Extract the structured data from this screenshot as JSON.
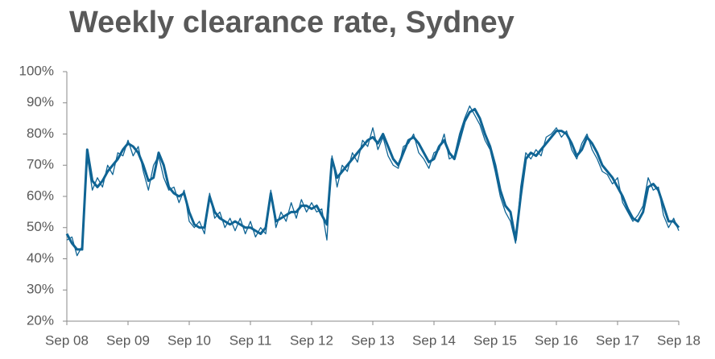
{
  "chart_data": {
    "type": "line",
    "title": "Weekly clearance rate, Sydney",
    "categories": [
      "Sep 08",
      null,
      null,
      null,
      null,
      null,
      null,
      null,
      null,
      null,
      null,
      null,
      "Sep 09",
      null,
      null,
      null,
      null,
      null,
      null,
      null,
      null,
      null,
      null,
      null,
      "Sep 10",
      null,
      null,
      null,
      null,
      null,
      null,
      null,
      null,
      null,
      null,
      null,
      "Sep 11",
      null,
      null,
      null,
      null,
      null,
      null,
      null,
      null,
      null,
      null,
      null,
      "Sep 12",
      null,
      null,
      null,
      null,
      null,
      null,
      null,
      null,
      null,
      null,
      null,
      "Sep 13",
      null,
      null,
      null,
      null,
      null,
      null,
      null,
      null,
      null,
      null,
      null,
      "Sep 14",
      null,
      null,
      null,
      null,
      null,
      null,
      null,
      null,
      null,
      null,
      null,
      "Sep 15",
      null,
      null,
      null,
      null,
      null,
      null,
      null,
      null,
      null,
      null,
      null,
      "Sep 16",
      null,
      null,
      null,
      null,
      null,
      null,
      null,
      null,
      null,
      null,
      null,
      "Sep 17",
      null,
      null,
      null,
      null,
      null,
      null,
      null,
      null,
      null,
      null,
      null,
      "Sep 18"
    ],
    "series": [
      {
        "color": "#0f6494",
        "width": 1.3,
        "values": [
          46,
          47,
          41,
          44,
          73,
          62,
          66,
          63,
          70,
          67,
          74,
          73,
          78,
          73,
          76,
          68,
          62,
          70,
          73,
          66,
          62,
          63,
          58,
          62,
          52,
          50,
          52,
          48,
          61,
          53,
          55,
          50,
          53,
          49,
          53,
          48,
          52,
          47,
          50,
          48,
          62,
          50,
          55,
          52,
          58,
          53,
          59,
          55,
          58,
          55,
          56,
          46,
          73,
          63,
          70,
          68,
          74,
          71,
          78,
          76,
          82,
          75,
          79,
          73,
          70,
          69,
          76,
          77,
          80,
          74,
          72,
          69,
          74,
          75,
          80,
          72,
          73,
          80,
          85,
          89,
          86,
          83,
          78,
          75,
          68,
          60,
          55,
          52,
          45,
          63,
          74,
          72,
          75,
          73,
          79,
          80,
          82,
          79,
          81,
          75,
          72,
          77,
          80,
          75,
          72,
          68,
          67,
          64,
          66,
          58,
          55,
          52,
          54,
          57,
          66,
          62,
          63,
          54,
          50,
          53,
          49
        ]
      },
      {
        "color": "#0f6494",
        "width": 3,
        "values": [
          48,
          45,
          43,
          43,
          75,
          65,
          63,
          65,
          68,
          70,
          72,
          75,
          77,
          76,
          74,
          70,
          65,
          66,
          74,
          70,
          63,
          61,
          60,
          61,
          55,
          51,
          50,
          50,
          60,
          55,
          53,
          52,
          51,
          52,
          51,
          50,
          50,
          49,
          48,
          50,
          61,
          52,
          53,
          54,
          55,
          55,
          57,
          57,
          56,
          57,
          54,
          51,
          72,
          66,
          68,
          70,
          72,
          74,
          76,
          78,
          79,
          77,
          80,
          76,
          72,
          70,
          74,
          78,
          79,
          77,
          74,
          71,
          72,
          76,
          78,
          74,
          72,
          78,
          84,
          87,
          88,
          85,
          80,
          76,
          70,
          62,
          57,
          55,
          46,
          60,
          72,
          74,
          73,
          75,
          77,
          79,
          81,
          81,
          80,
          77,
          73,
          75,
          79,
          77,
          74,
          70,
          68,
          66,
          63,
          60,
          56,
          53,
          52,
          55,
          63,
          64,
          62,
          57,
          52,
          52,
          50
        ]
      }
    ],
    "ylim": [
      20,
      100
    ],
    "yticks": [
      {
        "value": 20,
        "label": "20%"
      },
      {
        "value": 30,
        "label": "30%"
      },
      {
        "value": 40,
        "label": "40%"
      },
      {
        "value": 50,
        "label": "50%"
      },
      {
        "value": 60,
        "label": "60%"
      },
      {
        "value": 70,
        "label": "70%"
      },
      {
        "value": 80,
        "label": "80%"
      },
      {
        "value": 90,
        "label": "90%"
      },
      {
        "value": 100,
        "label": "100%"
      }
    ],
    "grid": false
  }
}
